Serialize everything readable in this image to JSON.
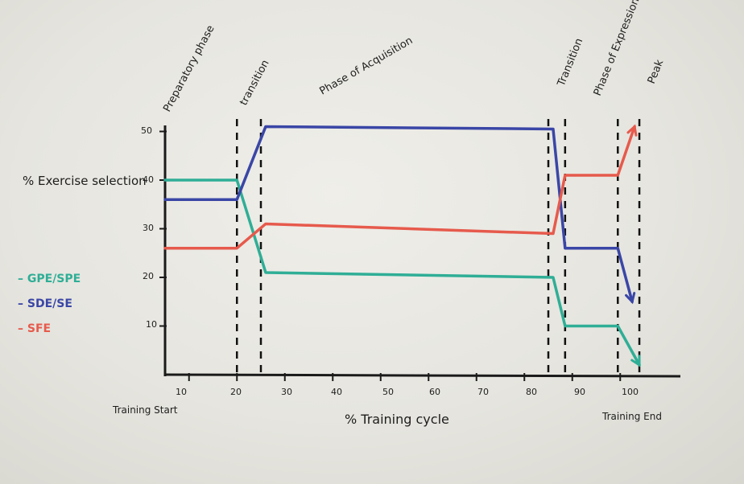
{
  "chart_data": {
    "type": "line",
    "title": "",
    "xlabel": "% Training cycle",
    "ylabel": "% Exercise selection",
    "xlim": [
      5,
      110
    ],
    "ylim": [
      0,
      50
    ],
    "x_ticks": [
      "10",
      "20",
      "30",
      "40",
      "50",
      "60",
      "70",
      "80",
      "90",
      "100"
    ],
    "y_ticks": [
      "10",
      "20",
      "30",
      "40",
      "50"
    ],
    "x_start_label": "Training Start",
    "x_end_label": "Training End",
    "series": [
      {
        "name": "GPE/SPE",
        "color": "#2fae96",
        "x": [
          5,
          20,
          26,
          86,
          88.5,
          99.5,
          104
        ],
        "y": [
          40,
          40,
          21,
          20,
          10,
          10,
          2
        ]
      },
      {
        "name": "SDE/SE",
        "color": "#3a46a6",
        "x": [
          5,
          20,
          26,
          86,
          88.5,
          99.5,
          102.5
        ],
        "y": [
          36,
          36,
          51,
          50.5,
          26,
          26,
          15
        ]
      },
      {
        "name": "SFE",
        "color": "#e65a4c",
        "x": [
          5,
          20,
          26,
          86,
          88.5,
          99.5,
          103
        ],
        "y": [
          26,
          26,
          31,
          29,
          41,
          41,
          51
        ]
      }
    ],
    "phase_boundaries": [
      20,
      25,
      85,
      88.5,
      99.5,
      104
    ],
    "phases": [
      {
        "label": "Preparatory phase",
        "x": 12.5
      },
      {
        "label": "transition",
        "x": 22.5
      },
      {
        "label": "Phase of Acquisition",
        "x": 50
      },
      {
        "label": "Transition",
        "x": 86.5
      },
      {
        "label": "Phase of Expression",
        "x": 94
      },
      {
        "label": "Peak",
        "x": 103
      }
    ],
    "legend": [
      {
        "label": "– GPE/SPE",
        "color": "#2fae96"
      },
      {
        "label": "– SDE/SE",
        "color": "#3a46a6"
      },
      {
        "label": "– SFE",
        "color": "#e65a4c"
      }
    ]
  }
}
